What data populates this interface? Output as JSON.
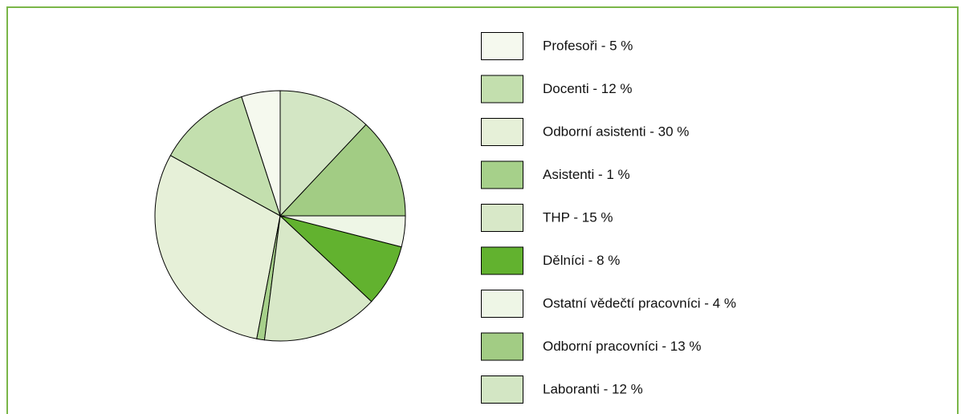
{
  "chart_data": {
    "type": "pie",
    "categories": [
      "Profesoři - 5 %",
      "Docenti - 12 %",
      "Odborní asistenti - 30 %",
      "Asistenti - 1 %",
      "THP - 15 %",
      "Dělníci - 8 %",
      "Ostatní vědečtí pracovníci - 4 %",
      "Odborní pracovníci - 13 %",
      "Laboranti - 12 %"
    ],
    "values": [
      5,
      12,
      30,
      1,
      15,
      8,
      4,
      13,
      12
    ],
    "colors": [
      "#f5f9ee",
      "#c3dfae",
      "#e6f0d8",
      "#a6d08a",
      "#d8e8c8",
      "#62b22f",
      "#eef6e6",
      "#a2cc84",
      "#d3e6c4"
    ],
    "direction": "counterclockwise"
  }
}
